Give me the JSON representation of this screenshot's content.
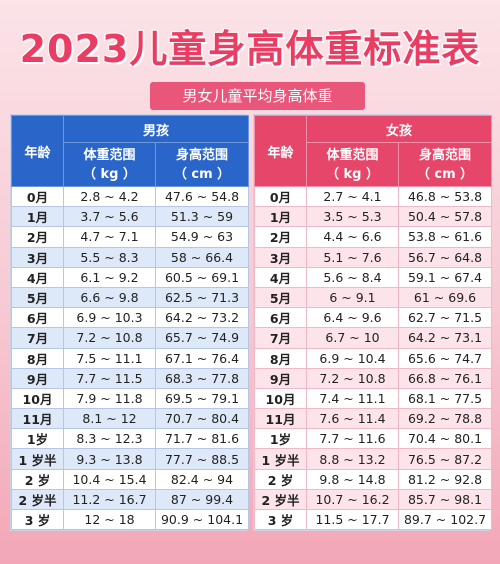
{
  "title": "2023儿童身高体重标准表",
  "subtitle": "男女儿童平均身高体重",
  "header": {
    "age": "年龄",
    "weight_range": "体重范围",
    "weight_unit": "（ kg ）",
    "height_range": "身高范围",
    "height_unit": "（ cm ）"
  },
  "boys": {
    "label": "男孩",
    "rows": [
      {
        "age": "0月",
        "weight": "2.8 ~ 4.2",
        "height": "47.6 ~ 54.8"
      },
      {
        "age": "1月",
        "weight": "3.7 ~ 5.6",
        "height": "51.3 ~ 59"
      },
      {
        "age": "2月",
        "weight": "4.7 ~ 7.1",
        "height": "54.9 ~ 63"
      },
      {
        "age": "3月",
        "weight": "5.5 ~ 8.3",
        "height": "58 ~ 66.4"
      },
      {
        "age": "4月",
        "weight": "6.1 ~ 9.2",
        "height": "60.5 ~ 69.1"
      },
      {
        "age": "5月",
        "weight": "6.6 ~ 9.8",
        "height": "62.5 ~ 71.3"
      },
      {
        "age": "6月",
        "weight": "6.9 ~ 10.3",
        "height": "64.2 ~ 73.2"
      },
      {
        "age": "7月",
        "weight": "7.2 ~ 10.8",
        "height": "65.7 ~ 74.9"
      },
      {
        "age": "8月",
        "weight": "7.5 ~ 11.1",
        "height": "67.1 ~ 76.4"
      },
      {
        "age": "9月",
        "weight": "7.7 ~ 11.5",
        "height": "68.3 ~ 77.8"
      },
      {
        "age": "10月",
        "weight": "7.9 ~ 11.8",
        "height": "69.5 ~ 79.1"
      },
      {
        "age": "11月",
        "weight": "8.1 ~ 12",
        "height": "70.7 ~ 80.4"
      },
      {
        "age": "1岁",
        "weight": "8.3 ~ 12.3",
        "height": "71.7 ~ 81.6"
      },
      {
        "age": "1 岁半",
        "weight": "9.3 ~ 13.8",
        "height": "77.7 ~ 88.5"
      },
      {
        "age": "2 岁",
        "weight": "10.4 ~ 15.4",
        "height": "82.4 ~ 94"
      },
      {
        "age": "2 岁半",
        "weight": "11.2 ~ 16.7",
        "height": "87 ~ 99.4"
      },
      {
        "age": "3 岁",
        "weight": "12 ~ 18",
        "height": "90.9 ~ 104.1"
      }
    ]
  },
  "girls": {
    "label": "女孩",
    "rows": [
      {
        "age": "0月",
        "weight": "2.7 ~ 4.1",
        "height": "46.8 ~ 53.8"
      },
      {
        "age": "1月",
        "weight": "3.5 ~ 5.3",
        "height": "50.4 ~ 57.8"
      },
      {
        "age": "2月",
        "weight": "4.4 ~ 6.6",
        "height": "53.8 ~ 61.6"
      },
      {
        "age": "3月",
        "weight": "5.1 ~ 7.6",
        "height": "56.7 ~ 64.8"
      },
      {
        "age": "4月",
        "weight": "5.6 ~ 8.4",
        "height": "59.1 ~ 67.4"
      },
      {
        "age": "5月",
        "weight": "6 ~ 9.1",
        "height": "61 ~ 69.6"
      },
      {
        "age": "6月",
        "weight": "6.4 ~ 9.6",
        "height": "62.7 ~ 71.5"
      },
      {
        "age": "7月",
        "weight": "6.7 ~ 10",
        "height": "64.2 ~ 73.1"
      },
      {
        "age": "8月",
        "weight": "6.9 ~ 10.4",
        "height": "65.6 ~ 74.7"
      },
      {
        "age": "9月",
        "weight": "7.2 ~ 10.8",
        "height": "66.8 ~ 76.1"
      },
      {
        "age": "10月",
        "weight": "7.4 ~ 11.1",
        "height": "68.1 ~ 77.5"
      },
      {
        "age": "11月",
        "weight": "7.6 ~ 11.4",
        "height": "69.2 ~ 78.8"
      },
      {
        "age": "1岁",
        "weight": "7.7 ~ 11.6",
        "height": "70.4 ~ 80.1"
      },
      {
        "age": "1 岁半",
        "weight": "8.8 ~ 13.2",
        "height": "76.5 ~ 87.2"
      },
      {
        "age": "2 岁",
        "weight": "9.8 ~ 14.8",
        "height": "81.2 ~ 92.8"
      },
      {
        "age": "2 岁半",
        "weight": "10.7 ~ 16.2",
        "height": "85.7 ~ 98.1"
      },
      {
        "age": "3 岁",
        "weight": "11.5 ~ 17.7",
        "height": "89.7 ~ 102.7"
      }
    ]
  },
  "colors": {
    "title": "#ea3d64",
    "boy_header": "#2a65c9",
    "girl_header": "#e64669"
  }
}
